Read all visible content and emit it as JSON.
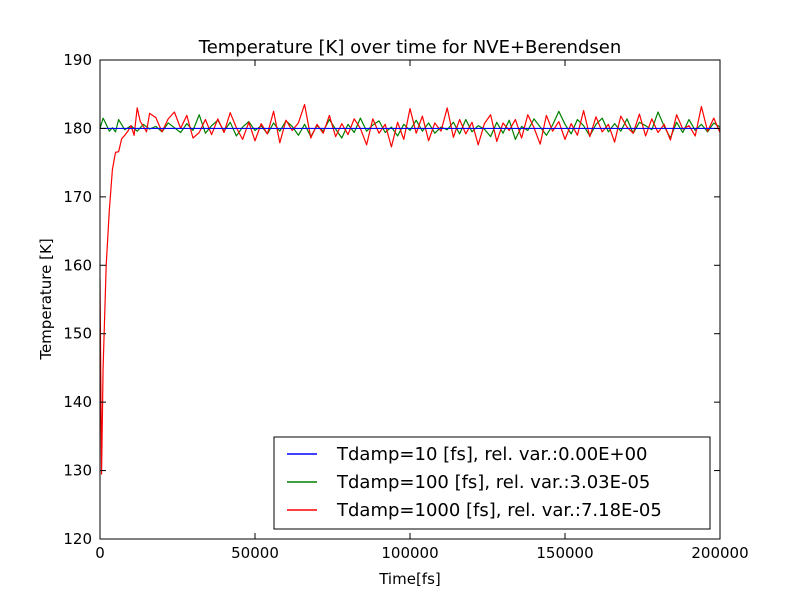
{
  "chart_data": {
    "type": "line",
    "title": "Temperature [K] over time for NVE+Berendsen",
    "xlabel": "Time[fs]",
    "ylabel": "Temperature [K]",
    "xlim": [
      0,
      200000
    ],
    "ylim": [
      120,
      190
    ],
    "xticks": [
      0,
      50000,
      100000,
      150000,
      200000
    ],
    "xtick_labels": [
      "0",
      "50000",
      "100000",
      "150000",
      "200000"
    ],
    "yticks": [
      120,
      130,
      140,
      150,
      160,
      170,
      180,
      190
    ],
    "ytick_labels": [
      "120",
      "130",
      "140",
      "150",
      "160",
      "170",
      "180",
      "190"
    ],
    "grid": false,
    "legend_position": "lower-right",
    "series": [
      {
        "name": "Tdamp=10 [fs], rel. var.:0.00E+00",
        "color": "#0000ff",
        "x": [
          0,
          200000
        ],
        "y": [
          180.0,
          180.0
        ]
      },
      {
        "name": "Tdamp=100 [fs], rel. var.:3.03E-05",
        "color": "#008000",
        "x": [
          0,
          1000,
          2000,
          3000,
          4000,
          5000,
          6000,
          8000,
          10000,
          12000,
          14000,
          16000,
          18000,
          20000,
          22000,
          24000,
          26000,
          28000,
          30000,
          32000,
          34000,
          36000,
          38000,
          40000,
          42000,
          44000,
          46000,
          48000,
          50000,
          52000,
          54000,
          56000,
          58000,
          60000,
          62000,
          64000,
          66000,
          68000,
          70000,
          72000,
          74000,
          76000,
          78000,
          80000,
          82000,
          84000,
          86000,
          88000,
          90000,
          92000,
          94000,
          96000,
          98000,
          100000,
          102000,
          104000,
          106000,
          108000,
          110000,
          112000,
          114000,
          116000,
          118000,
          120000,
          122000,
          124000,
          126000,
          128000,
          130000,
          132000,
          134000,
          136000,
          138000,
          140000,
          142000,
          144000,
          146000,
          148000,
          150000,
          152000,
          154000,
          156000,
          158000,
          160000,
          162000,
          164000,
          166000,
          168000,
          170000,
          172000,
          174000,
          176000,
          178000,
          180000,
          182000,
          184000,
          186000,
          188000,
          190000,
          192000,
          194000,
          196000,
          198000,
          200000
        ],
        "y": [
          180.0,
          181.5,
          180.6,
          179.6,
          180.1,
          179.5,
          181.3,
          179.8,
          180.4,
          179.6,
          180.6,
          179.9,
          180.3,
          179.5,
          180.8,
          180.1,
          179.4,
          180.7,
          179.7,
          182.0,
          179.3,
          180.4,
          181.2,
          179.6,
          180.9,
          178.9,
          180.2,
          181.0,
          179.7,
          180.4,
          179.2,
          180.8,
          179.6,
          181.1,
          180.3,
          179.0,
          180.6,
          178.8,
          180.4,
          179.6,
          181.3,
          179.9,
          178.6,
          180.6,
          179.4,
          181.5,
          179.6,
          180.5,
          181.1,
          179.4,
          180.2,
          178.9,
          180.6,
          179.7,
          181.2,
          179.6,
          180.8,
          179.3,
          180.2,
          179.8,
          180.9,
          179.2,
          181.3,
          179.5,
          180.4,
          179.9,
          178.8,
          180.9,
          179.3,
          181.2,
          178.4,
          180.3,
          179.7,
          181.4,
          180.2,
          179.0,
          180.5,
          182.5,
          180.6,
          179.2,
          181.3,
          180.4,
          178.9,
          180.6,
          181.5,
          179.5,
          180.7,
          179.6,
          181.4,
          179.3,
          180.9,
          180.4,
          179.8,
          182.4,
          180.3,
          178.6,
          180.9,
          179.4,
          181.3,
          179.7,
          180.6,
          179.5,
          180.8,
          180.2
        ]
      },
      {
        "name": "Tdamp=1000 [fs], rel. var.:7.18E-05",
        "color": "#ff0000",
        "x": [
          0,
          500,
          1000,
          2000,
          3000,
          4000,
          5000,
          6000,
          7000,
          8000,
          9000,
          10000,
          11000,
          12000,
          13000,
          14000,
          15000,
          16000,
          18000,
          20000,
          22000,
          24000,
          26000,
          28000,
          30000,
          32000,
          34000,
          36000,
          38000,
          40000,
          42000,
          44000,
          46000,
          48000,
          50000,
          52000,
          54000,
          56000,
          58000,
          60000,
          62000,
          64000,
          66000,
          68000,
          70000,
          72000,
          74000,
          76000,
          78000,
          80000,
          82000,
          84000,
          86000,
          88000,
          90000,
          92000,
          94000,
          96000,
          98000,
          100000,
          102000,
          104000,
          106000,
          108000,
          110000,
          112000,
          114000,
          116000,
          118000,
          120000,
          122000,
          124000,
          126000,
          128000,
          130000,
          132000,
          134000,
          136000,
          138000,
          140000,
          142000,
          144000,
          146000,
          148000,
          150000,
          152000,
          154000,
          156000,
          158000,
          160000,
          162000,
          164000,
          166000,
          168000,
          170000,
          172000,
          174000,
          176000,
          178000,
          180000,
          182000,
          184000,
          186000,
          188000,
          190000,
          192000,
          194000,
          196000,
          198000,
          200000
        ],
        "y": [
          158.0,
          129.5,
          145.0,
          160.0,
          168.0,
          174.0,
          176.5,
          176.6,
          178.5,
          179.0,
          179.6,
          180.4,
          179.0,
          183.0,
          181.0,
          180.3,
          179.5,
          182.2,
          181.6,
          179.5,
          181.4,
          182.4,
          180.0,
          181.9,
          178.6,
          179.4,
          181.3,
          179.1,
          181.4,
          179.4,
          182.3,
          180.1,
          178.4,
          180.9,
          178.2,
          180.7,
          179.2,
          182.5,
          177.9,
          181.2,
          179.7,
          180.8,
          183.5,
          178.6,
          180.6,
          179.3,
          181.9,
          178.8,
          180.7,
          179.1,
          181.4,
          180.0,
          177.6,
          181.4,
          179.3,
          180.6,
          177.3,
          180.9,
          178.4,
          182.9,
          179.3,
          181.8,
          178.2,
          180.8,
          179.6,
          183.0,
          178.7,
          181.3,
          179.2,
          180.9,
          177.6,
          180.7,
          182.0,
          178.1,
          180.8,
          179.7,
          181.3,
          178.6,
          182.0,
          180.1,
          177.7,
          181.9,
          179.6,
          181.0,
          178.4,
          180.7,
          179.0,
          182.6,
          178.8,
          181.7,
          179.5,
          180.6,
          178.0,
          181.8,
          180.2,
          179.3,
          182.1,
          178.9,
          181.4,
          179.4,
          180.6,
          178.3,
          182.0,
          179.9,
          180.4,
          178.9,
          183.2,
          179.6,
          181.5,
          179.4
        ]
      }
    ]
  }
}
